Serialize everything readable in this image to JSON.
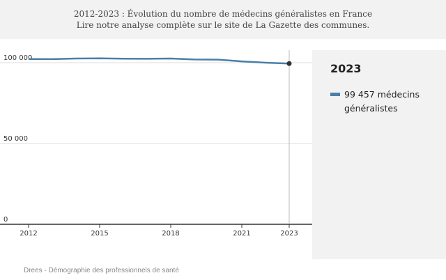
{
  "header": {
    "title": "2012-2023 : Évolution du nombre de médecins généralistes en France",
    "subtitle": "Lire notre analyse complète sur le site de La Gazette des communes."
  },
  "tooltip": {
    "year": "2023",
    "value_text": "99 457 médecins généralistes"
  },
  "source": "Drees - Démographie des professionnels de santé",
  "colors": {
    "line": "#4a7fa8",
    "grid": "#dddddd",
    "axis": "#333333",
    "crosshair": "#b8b8b8",
    "marker": "#333333",
    "panel": "#f2f2f2"
  },
  "chart_data": {
    "type": "line",
    "title": "2012-2023 : Évolution du nombre de médecins généralistes en France",
    "xlabel": "",
    "ylabel": "",
    "x": [
      2012,
      2013,
      2014,
      2015,
      2016,
      2017,
      2018,
      2019,
      2020,
      2021,
      2022,
      2023
    ],
    "series": [
      {
        "name": "médecins généralistes",
        "values": [
          102300,
          102200,
          102600,
          102700,
          102500,
          102400,
          102600,
          102000,
          101900,
          100800,
          100000,
          99457
        ]
      }
    ],
    "x_tick_labels": [
      "2012",
      "2015",
      "2018",
      "2021",
      "2023"
    ],
    "x_ticks": [
      2012,
      2015,
      2018,
      2021,
      2023
    ],
    "y_tick_labels": [
      "0",
      "50 000",
      "100 000"
    ],
    "y_ticks": [
      0,
      50000,
      100000
    ],
    "ylim": [
      0,
      105000
    ],
    "xlim": [
      2012,
      2023
    ],
    "highlight_x": 2023,
    "grid": true
  }
}
